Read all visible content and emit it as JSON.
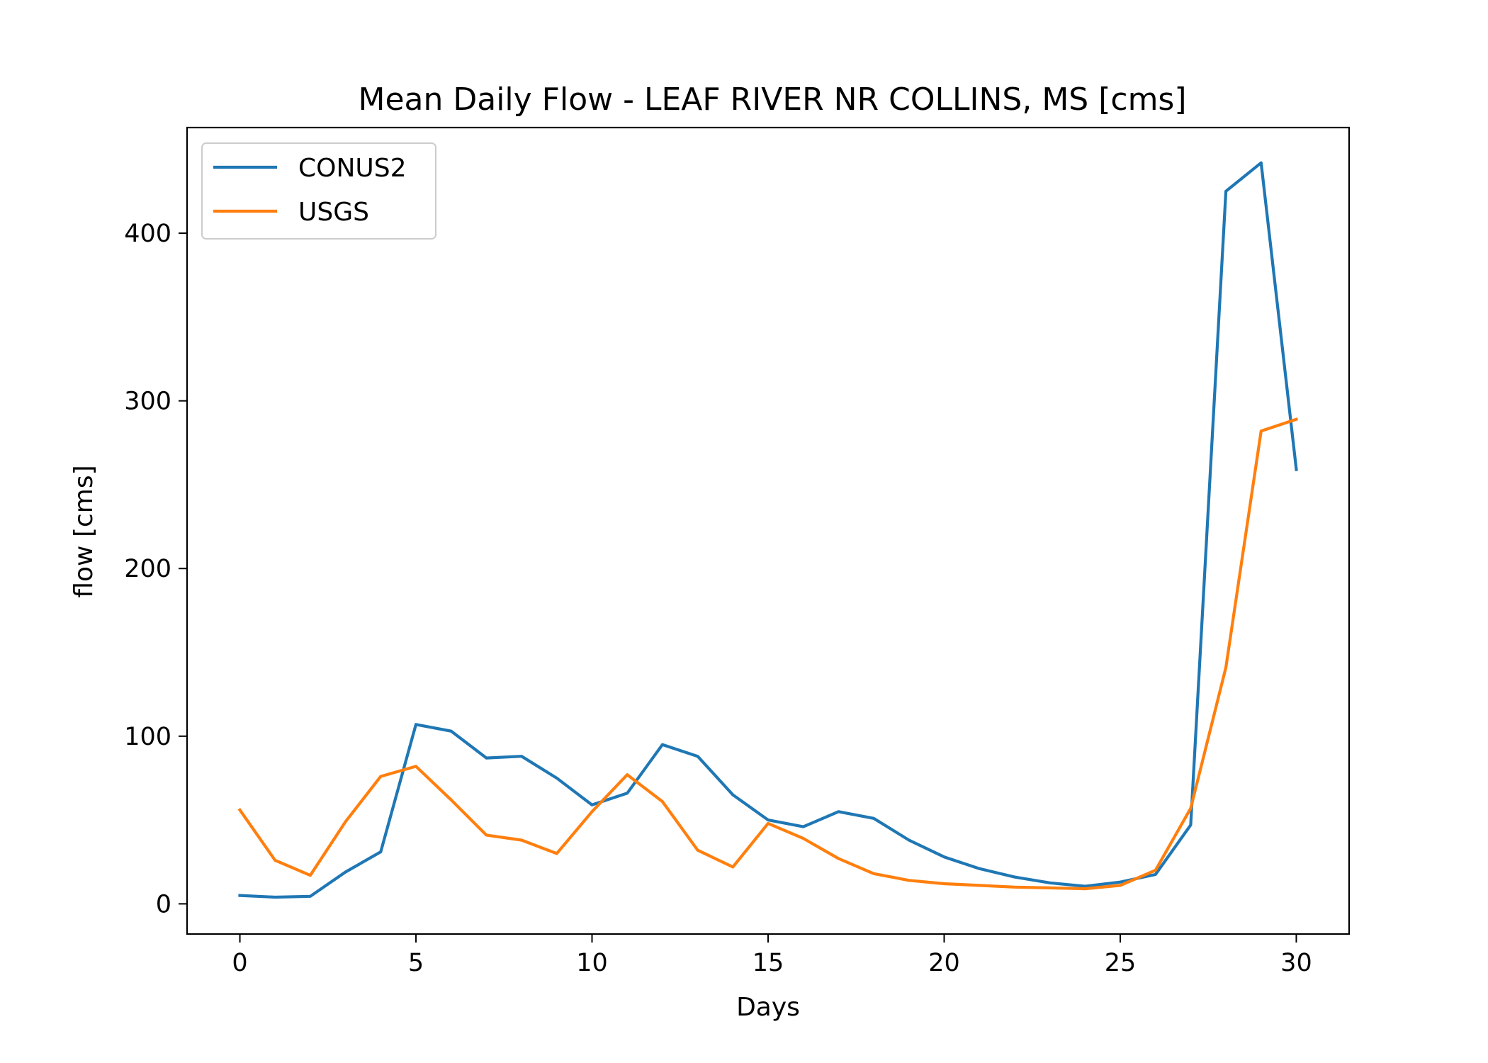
{
  "chart_data": {
    "type": "line",
    "title": "Mean Daily Flow - LEAF RIVER NR COLLINS, MS [cms]",
    "xlabel": "Days",
    "ylabel": "flow [cms]",
    "xlim": [
      -1.5,
      31.5
    ],
    "ylim": [
      -18,
      463
    ],
    "xticks": [
      0,
      5,
      10,
      15,
      20,
      25,
      30
    ],
    "yticks": [
      0,
      100,
      200,
      300,
      400
    ],
    "grid": false,
    "legend": "top-left",
    "x": [
      0,
      1,
      2,
      3,
      4,
      5,
      6,
      7,
      8,
      9,
      10,
      11,
      12,
      13,
      14,
      15,
      16,
      17,
      18,
      19,
      20,
      21,
      22,
      23,
      24,
      25,
      26,
      27,
      28,
      29,
      30
    ],
    "series": [
      {
        "name": "CONUS2",
        "color": "#1f77b4",
        "values": [
          5,
          4,
          4.5,
          19,
          31,
          107,
          103,
          87,
          88,
          75,
          59,
          66,
          95,
          88,
          65,
          50,
          46,
          55,
          51,
          38,
          28,
          21,
          16,
          12.5,
          10.5,
          13,
          17.5,
          47,
          425,
          442,
          259
        ]
      },
      {
        "name": "USGS",
        "color": "#ff7f0e",
        "values": [
          56,
          26,
          17,
          49,
          76,
          82,
          62,
          41,
          38,
          30,
          55,
          77,
          61,
          32,
          22,
          48,
          39,
          27,
          18,
          14,
          12,
          11,
          10,
          9.5,
          9,
          11,
          20,
          57,
          141,
          282,
          289
        ]
      }
    ]
  }
}
